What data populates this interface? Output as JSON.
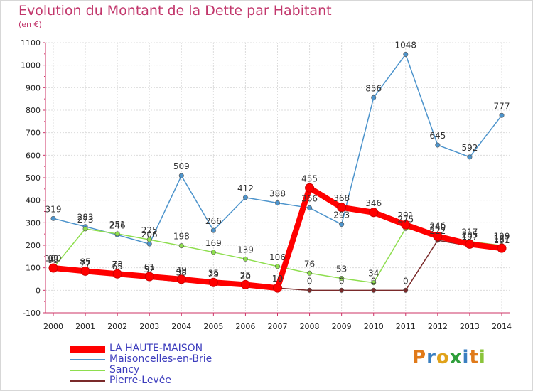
{
  "title": "Evolution du Montant de la Dette par Habitant",
  "subtitle": "(en €)",
  "logo": "Proxiti",
  "chart_data": {
    "type": "line",
    "categories": [
      "2000",
      "2001",
      "2002",
      "2003",
      "2004",
      "2005",
      "2006",
      "2007",
      "2008",
      "2009",
      "2010",
      "2011",
      "2012",
      "2013",
      "2014"
    ],
    "ylim": [
      -100,
      1100
    ],
    "yticks": [
      -100,
      0,
      100,
      200,
      300,
      400,
      500,
      600,
      700,
      800,
      900,
      1000,
      1100
    ],
    "grid": true,
    "legend_position": "bottom-left",
    "series": [
      {
        "name": "Maisoncelles-en-Brie",
        "color": "#4d94cc",
        "values": [
          319,
          283,
          246,
          206,
          509,
          266,
          412,
          388,
          366,
          293,
          856,
          1048,
          645,
          592,
          777
        ],
        "labels": [
          "319",
          "283",
          "246",
          "206",
          "509",
          "266",
          "412",
          "388",
          "366",
          "293",
          "856",
          "1048",
          "645",
          "592",
          "777"
        ]
      },
      {
        "name": "Sancy",
        "color": "#8ede4e",
        "values": [
          100,
          273,
          251,
          225,
          198,
          169,
          139,
          106,
          76,
          53,
          34,
          275,
          246,
          217,
          199
        ],
        "labels": [
          "100",
          "273",
          "251",
          "225",
          "198",
          "169",
          "139",
          "106",
          "76",
          "53",
          "34",
          "275",
          "246",
          "217",
          "199"
        ]
      },
      {
        "name": "Pierre-Levée",
        "color": "#7a2a2a",
        "values": [
          93,
          77,
          65,
          52,
          38,
          29,
          20,
          10,
          0,
          0,
          0,
          0,
          222,
          197,
          181
        ],
        "labels": [
          "93",
          "77",
          "65",
          "52",
          "38",
          "29",
          "20",
          "10",
          "0",
          "0",
          "0",
          "0",
          "222",
          "197",
          "181"
        ]
      },
      {
        "name": "LA HAUTE-MAISON",
        "color": "#ff0000",
        "values": [
          99,
          85,
          73,
          61,
          49,
          35,
          25,
          10,
          455,
          368,
          346,
          291,
          240,
          205,
          187
        ],
        "labels": [
          "99",
          "85",
          "73",
          "61",
          "49",
          "35",
          "25",
          "10",
          "455",
          "368",
          "346",
          "291",
          "240",
          "205",
          "187"
        ]
      }
    ]
  },
  "legend": [
    {
      "name": "LA HAUTE-MAISON",
      "color": "#ff0000"
    },
    {
      "name": "Maisoncelles-en-Brie",
      "color": "#4d94cc"
    },
    {
      "name": "Sancy",
      "color": "#8ede4e"
    },
    {
      "name": "Pierre-Levée",
      "color": "#7a2a2a"
    }
  ]
}
